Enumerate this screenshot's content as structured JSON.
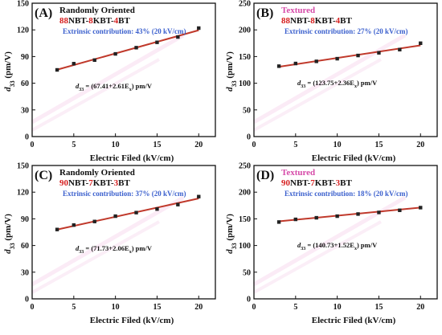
{
  "chart_data": [
    {
      "type": "scatter",
      "panel_label": "(A)",
      "heading": "Randomly Oriented",
      "heading_color": "#111111",
      "composition": {
        "a_num": "88",
        "a_txt": "NBT-",
        "b_num": "8",
        "b_txt": "KBT-",
        "c_num": "4",
        "c_txt": "BT"
      },
      "extrinsic_label": "Extrinsic contribution:  43%  (20 kV/cm)",
      "equation": "d33 = (67.41+2.61E) pm/V",
      "xlabel": "Electric Filed (kV/cm)",
      "ylabel": "d33 (pm/V)",
      "xlim": [
        0,
        22
      ],
      "ylim": [
        0,
        150
      ],
      "xticks": [
        0,
        5,
        10,
        15,
        20
      ],
      "yticks": [
        0,
        30,
        60,
        90,
        120,
        150
      ],
      "x": [
        3,
        5,
        7.5,
        10,
        12.5,
        15,
        17.5,
        20
      ],
      "y": [
        75,
        82,
        86,
        93,
        100,
        106,
        112,
        122
      ],
      "fit": {
        "intercept": 67.41,
        "slope": 2.61
      },
      "grid": false
    },
    {
      "type": "scatter",
      "panel_label": "(B)",
      "heading": "Textured",
      "heading_color": "#d64aa8",
      "composition": {
        "a_num": "88",
        "a_txt": "NBT-",
        "b_num": "8",
        "b_txt": "KBT-",
        "c_num": "4",
        "c_txt": "BT"
      },
      "extrinsic_label": "Extrinsic contribution:  27%  (20 kV/cm)",
      "equation": "d33 = (123.75+2.36E) pm/V",
      "xlabel": "Electric Filed (kV/cm)",
      "ylabel": "d33 (pm/V)",
      "xlim": [
        0,
        22
      ],
      "ylim": [
        0,
        250
      ],
      "xticks": [
        0,
        5,
        10,
        15,
        20
      ],
      "yticks": [
        0,
        50,
        100,
        150,
        200,
        250
      ],
      "x": [
        3,
        5,
        7.5,
        10,
        12.5,
        15,
        17.5,
        20
      ],
      "y": [
        132,
        137,
        141,
        146,
        152,
        157,
        163,
        175
      ],
      "fit": {
        "intercept": 123.75,
        "slope": 2.36
      },
      "grid": false
    },
    {
      "type": "scatter",
      "panel_label": "(C)",
      "heading": "Randomly Oriented",
      "heading_color": "#111111",
      "composition": {
        "a_num": "90",
        "a_txt": "NBT-",
        "b_num": "7",
        "b_txt": "KBT-",
        "c_num": "3",
        "c_txt": "BT"
      },
      "extrinsic_label": "Extrinsic contribution:  37%  (20 kV/cm)",
      "equation": "d33 = (71.73+2.06E) pm/V",
      "xlabel": "Electric Filed (kV/cm)",
      "ylabel": "d33 (pm/V)",
      "xlim": [
        0,
        22
      ],
      "ylim": [
        0,
        150
      ],
      "xticks": [
        0,
        5,
        10,
        15,
        20
      ],
      "yticks": [
        0,
        30,
        60,
        90,
        120,
        150
      ],
      "x": [
        3,
        5,
        7.5,
        10,
        12.5,
        15,
        17.5,
        20
      ],
      "y": [
        78,
        83,
        87,
        93,
        97,
        101,
        106,
        115
      ],
      "fit": {
        "intercept": 71.73,
        "slope": 2.06
      },
      "grid": false
    },
    {
      "type": "scatter",
      "panel_label": "(D)",
      "heading": "Textured",
      "heading_color": "#d64aa8",
      "composition": {
        "a_num": "90",
        "a_txt": "NBT-",
        "b_num": "7",
        "b_txt": "KBT-",
        "c_num": "3",
        "c_txt": "BT"
      },
      "extrinsic_label": "Extrinsic contribution:  18%  (20 kV/cm)",
      "equation": "d33 = (140.73+1.52E) pm/V",
      "xlabel": "Electric Filed (kV/cm)",
      "ylabel": "d33 (pm/V)",
      "xlim": [
        0,
        22
      ],
      "ylim": [
        0,
        250
      ],
      "xticks": [
        0,
        5,
        10,
        15,
        20
      ],
      "yticks": [
        0,
        50,
        100,
        150,
        200,
        250
      ],
      "x": [
        3,
        5,
        7.5,
        10,
        12.5,
        15,
        17.5,
        20
      ],
      "y": [
        144,
        149,
        152,
        155,
        159,
        162,
        166,
        171
      ],
      "fit": {
        "intercept": 140.73,
        "slope": 1.52
      },
      "grid": false
    }
  ],
  "colors": {
    "fit_line": "#c0392b",
    "marker": "#222222",
    "composition_number": "#d62020",
    "extrinsic_text": "#3a5fcd",
    "textured_heading": "#d64aa8"
  }
}
